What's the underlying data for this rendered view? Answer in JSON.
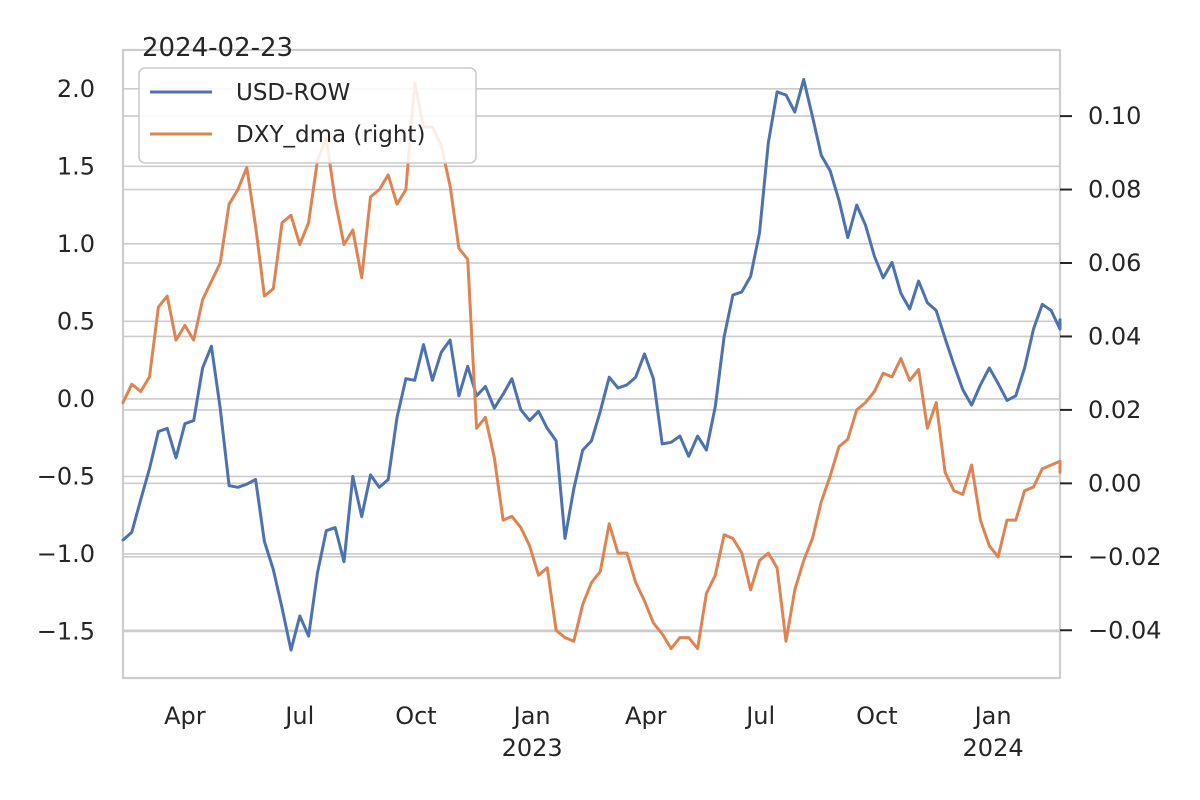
{
  "chart_data": {
    "type": "line",
    "title": "2024-02-23",
    "x_axis": {
      "type": "date",
      "range": [
        "2022-02-11",
        "2024-02-23"
      ],
      "ticks": [
        {
          "date": "2022-04-01",
          "label": "Apr"
        },
        {
          "date": "2022-07-01",
          "label": "Jul"
        },
        {
          "date": "2022-10-01",
          "label": "Oct"
        },
        {
          "date": "2023-01-01",
          "label": "Jan",
          "sublabel": "2023"
        },
        {
          "date": "2023-04-01",
          "label": "Apr"
        },
        {
          "date": "2023-07-01",
          "label": "Jul"
        },
        {
          "date": "2023-10-01",
          "label": "Oct"
        },
        {
          "date": "2024-01-01",
          "label": "Jan",
          "sublabel": "2024"
        }
      ]
    },
    "y_left": {
      "range": [
        -1.8,
        2.25
      ],
      "ticks": [
        -1.5,
        -1.0,
        -0.5,
        0.0,
        0.5,
        1.0,
        1.5,
        2.0
      ],
      "tick_labels": [
        "−1.5",
        "−1.0",
        "−0.5",
        "0.0",
        "0.5",
        "1.0",
        "1.5",
        "2.0"
      ]
    },
    "y_right": {
      "range": [
        -0.053,
        0.118
      ],
      "ticks": [
        -0.04,
        -0.02,
        0.0,
        0.02,
        0.04,
        0.06,
        0.08,
        0.1
      ],
      "tick_labels": [
        "−0.04",
        "−0.02",
        "0.00",
        "0.02",
        "0.04",
        "0.06",
        "0.08",
        "0.10"
      ]
    },
    "grid": true,
    "legend": {
      "placement": "top-left"
    },
    "series": [
      {
        "name": "USD-ROW",
        "axis": "left",
        "color": "#4c72b0",
        "points": [
          [
            "2022-02-11",
            -0.91
          ],
          [
            "2022-02-18",
            -0.86
          ],
          [
            "2022-02-25",
            -0.65
          ],
          [
            "2022-03-04",
            -0.45
          ],
          [
            "2022-03-11",
            -0.21
          ],
          [
            "2022-03-18",
            -0.19
          ],
          [
            "2022-03-25",
            -0.38
          ],
          [
            "2022-04-01",
            -0.16
          ],
          [
            "2022-04-08",
            -0.14
          ],
          [
            "2022-04-15",
            0.2
          ],
          [
            "2022-04-22",
            0.34
          ],
          [
            "2022-04-29",
            -0.06
          ],
          [
            "2022-05-06",
            -0.56
          ],
          [
            "2022-05-13",
            -0.57
          ],
          [
            "2022-05-20",
            -0.55
          ],
          [
            "2022-05-27",
            -0.52
          ],
          [
            "2022-06-03",
            -0.92
          ],
          [
            "2022-06-10",
            -1.1
          ],
          [
            "2022-06-17",
            -1.35
          ],
          [
            "2022-06-24",
            -1.62
          ],
          [
            "2022-07-01",
            -1.4
          ],
          [
            "2022-07-08",
            -1.53
          ],
          [
            "2022-07-15",
            -1.12
          ],
          [
            "2022-07-22",
            -0.85
          ],
          [
            "2022-07-29",
            -0.83
          ],
          [
            "2022-08-05",
            -1.05
          ],
          [
            "2022-08-12",
            -0.5
          ],
          [
            "2022-08-19",
            -0.76
          ],
          [
            "2022-08-26",
            -0.49
          ],
          [
            "2022-09-02",
            -0.57
          ],
          [
            "2022-09-09",
            -0.52
          ],
          [
            "2022-09-16",
            -0.12
          ],
          [
            "2022-09-23",
            0.13
          ],
          [
            "2022-09-30",
            0.12
          ],
          [
            "2022-10-07",
            0.35
          ],
          [
            "2022-10-14",
            0.12
          ],
          [
            "2022-10-21",
            0.3
          ],
          [
            "2022-10-28",
            0.38
          ],
          [
            "2022-11-04",
            0.02
          ],
          [
            "2022-11-11",
            0.21
          ],
          [
            "2022-11-18",
            0.02
          ],
          [
            "2022-11-25",
            0.08
          ],
          [
            "2022-12-02",
            -0.06
          ],
          [
            "2022-12-09",
            0.03
          ],
          [
            "2022-12-16",
            0.13
          ],
          [
            "2022-12-23",
            -0.07
          ],
          [
            "2022-12-30",
            -0.14
          ],
          [
            "2023-01-06",
            -0.08
          ],
          [
            "2023-01-13",
            -0.19
          ],
          [
            "2023-01-20",
            -0.27
          ],
          [
            "2023-01-27",
            -0.9
          ],
          [
            "2023-02-03",
            -0.58
          ],
          [
            "2023-02-10",
            -0.33
          ],
          [
            "2023-02-17",
            -0.27
          ],
          [
            "2023-02-24",
            -0.08
          ],
          [
            "2023-03-03",
            0.14
          ],
          [
            "2023-03-10",
            0.07
          ],
          [
            "2023-03-17",
            0.09
          ],
          [
            "2023-03-24",
            0.14
          ],
          [
            "2023-03-31",
            0.29
          ],
          [
            "2023-04-07",
            0.13
          ],
          [
            "2023-04-14",
            -0.29
          ],
          [
            "2023-04-21",
            -0.28
          ],
          [
            "2023-04-28",
            -0.24
          ],
          [
            "2023-05-05",
            -0.37
          ],
          [
            "2023-05-12",
            -0.24
          ],
          [
            "2023-05-19",
            -0.33
          ],
          [
            "2023-05-26",
            -0.05
          ],
          [
            "2023-06-02",
            0.4
          ],
          [
            "2023-06-09",
            0.67
          ],
          [
            "2023-06-16",
            0.69
          ],
          [
            "2023-06-23",
            0.79
          ],
          [
            "2023-06-30",
            1.07
          ],
          [
            "2023-07-07",
            1.65
          ],
          [
            "2023-07-14",
            1.98
          ],
          [
            "2023-07-21",
            1.96
          ],
          [
            "2023-07-28",
            1.85
          ],
          [
            "2023-08-04",
            2.06
          ],
          [
            "2023-08-11",
            1.82
          ],
          [
            "2023-08-18",
            1.57
          ],
          [
            "2023-08-25",
            1.47
          ],
          [
            "2023-09-01",
            1.28
          ],
          [
            "2023-09-08",
            1.04
          ],
          [
            "2023-09-15",
            1.25
          ],
          [
            "2023-09-22",
            1.12
          ],
          [
            "2023-09-29",
            0.92
          ],
          [
            "2023-10-06",
            0.78
          ],
          [
            "2023-10-13",
            0.88
          ],
          [
            "2023-10-20",
            0.68
          ],
          [
            "2023-10-27",
            0.58
          ],
          [
            "2023-11-03",
            0.76
          ],
          [
            "2023-11-10",
            0.62
          ],
          [
            "2023-11-17",
            0.57
          ],
          [
            "2023-11-24",
            0.39
          ],
          [
            "2023-12-01",
            0.22
          ],
          [
            "2023-12-08",
            0.06
          ],
          [
            "2023-12-15",
            -0.04
          ],
          [
            "2023-12-22",
            0.09
          ],
          [
            "2023-12-29",
            0.2
          ],
          [
            "2024-01-05",
            0.1
          ],
          [
            "2024-01-12",
            -0.01
          ],
          [
            "2024-01-19",
            0.02
          ],
          [
            "2024-01-26",
            0.2
          ],
          [
            "2024-02-02",
            0.45
          ],
          [
            "2024-02-09",
            0.61
          ],
          [
            "2024-02-16",
            0.57
          ],
          [
            "2024-02-23",
            0.45
          ],
          [
            "2024-02-23",
            0.51
          ]
        ]
      },
      {
        "name": "DXY_dma (right)",
        "axis": "right",
        "color": "#dd8452",
        "points": [
          [
            "2022-02-11",
            0.022
          ],
          [
            "2022-02-18",
            0.027
          ],
          [
            "2022-02-25",
            0.025
          ],
          [
            "2022-03-04",
            0.029
          ],
          [
            "2022-03-11",
            0.048
          ],
          [
            "2022-03-18",
            0.051
          ],
          [
            "2022-03-25",
            0.039
          ],
          [
            "2022-04-01",
            0.043
          ],
          [
            "2022-04-08",
            0.039
          ],
          [
            "2022-04-15",
            0.05
          ],
          [
            "2022-04-22",
            0.055
          ],
          [
            "2022-04-29",
            0.06
          ],
          [
            "2022-05-06",
            0.076
          ],
          [
            "2022-05-13",
            0.08
          ],
          [
            "2022-05-20",
            0.086
          ],
          [
            "2022-05-27",
            0.07
          ],
          [
            "2022-06-03",
            0.051
          ],
          [
            "2022-06-10",
            0.053
          ],
          [
            "2022-06-17",
            0.071
          ],
          [
            "2022-06-24",
            0.073
          ],
          [
            "2022-07-01",
            0.065
          ],
          [
            "2022-07-08",
            0.071
          ],
          [
            "2022-07-15",
            0.088
          ],
          [
            "2022-07-22",
            0.094
          ],
          [
            "2022-07-29",
            0.077
          ],
          [
            "2022-08-05",
            0.065
          ],
          [
            "2022-08-12",
            0.069
          ],
          [
            "2022-08-19",
            0.056
          ],
          [
            "2022-08-26",
            0.078
          ],
          [
            "2022-09-02",
            0.08
          ],
          [
            "2022-09-09",
            0.084
          ],
          [
            "2022-09-16",
            0.076
          ],
          [
            "2022-09-23",
            0.08
          ],
          [
            "2022-09-30",
            0.109
          ],
          [
            "2022-10-07",
            0.097
          ],
          [
            "2022-10-14",
            0.097
          ],
          [
            "2022-10-21",
            0.092
          ],
          [
            "2022-10-28",
            0.081
          ],
          [
            "2022-11-04",
            0.064
          ],
          [
            "2022-11-11",
            0.061
          ],
          [
            "2022-11-18",
            0.015
          ],
          [
            "2022-11-25",
            0.018
          ],
          [
            "2022-12-02",
            0.007
          ],
          [
            "2022-12-09",
            -0.01
          ],
          [
            "2022-12-16",
            -0.009
          ],
          [
            "2022-12-23",
            -0.012
          ],
          [
            "2022-12-30",
            -0.017
          ],
          [
            "2023-01-06",
            -0.025
          ],
          [
            "2023-01-13",
            -0.023
          ],
          [
            "2023-01-20",
            -0.04
          ],
          [
            "2023-01-27",
            -0.042
          ],
          [
            "2023-02-03",
            -0.043
          ],
          [
            "2023-02-10",
            -0.033
          ],
          [
            "2023-02-17",
            -0.027
          ],
          [
            "2023-02-24",
            -0.024
          ],
          [
            "2023-03-03",
            -0.011
          ],
          [
            "2023-03-10",
            -0.019
          ],
          [
            "2023-03-17",
            -0.019
          ],
          [
            "2023-03-24",
            -0.027
          ],
          [
            "2023-03-31",
            -0.032
          ],
          [
            "2023-04-07",
            -0.038
          ],
          [
            "2023-04-14",
            -0.041
          ],
          [
            "2023-04-21",
            -0.045
          ],
          [
            "2023-04-28",
            -0.042
          ],
          [
            "2023-05-05",
            -0.042
          ],
          [
            "2023-05-12",
            -0.045
          ],
          [
            "2023-05-19",
            -0.03
          ],
          [
            "2023-05-26",
            -0.025
          ],
          [
            "2023-06-02",
            -0.014
          ],
          [
            "2023-06-09",
            -0.015
          ],
          [
            "2023-06-16",
            -0.019
          ],
          [
            "2023-06-23",
            -0.029
          ],
          [
            "2023-06-30",
            -0.021
          ],
          [
            "2023-07-07",
            -0.019
          ],
          [
            "2023-07-14",
            -0.023
          ],
          [
            "2023-07-21",
            -0.043
          ],
          [
            "2023-07-28",
            -0.029
          ],
          [
            "2023-08-04",
            -0.021
          ],
          [
            "2023-08-11",
            -0.015
          ],
          [
            "2023-08-18",
            -0.005
          ],
          [
            "2023-08-25",
            0.002
          ],
          [
            "2023-09-01",
            0.01
          ],
          [
            "2023-09-08",
            0.012
          ],
          [
            "2023-09-15",
            0.02
          ],
          [
            "2023-09-22",
            0.022
          ],
          [
            "2023-09-29",
            0.025
          ],
          [
            "2023-10-06",
            0.03
          ],
          [
            "2023-10-13",
            0.029
          ],
          [
            "2023-10-20",
            0.034
          ],
          [
            "2023-10-27",
            0.028
          ],
          [
            "2023-11-03",
            0.031
          ],
          [
            "2023-11-10",
            0.015
          ],
          [
            "2023-11-17",
            0.022
          ],
          [
            "2023-11-24",
            0.003
          ],
          [
            "2023-12-01",
            -0.002
          ],
          [
            "2023-12-08",
            -0.003
          ],
          [
            "2023-12-15",
            0.005
          ],
          [
            "2023-12-22",
            -0.01
          ],
          [
            "2023-12-29",
            -0.017
          ],
          [
            "2024-01-05",
            -0.02
          ],
          [
            "2024-01-12",
            -0.01
          ],
          [
            "2024-01-19",
            -0.01
          ],
          [
            "2024-01-26",
            -0.002
          ],
          [
            "2024-02-02",
            -0.001
          ],
          [
            "2024-02-09",
            0.004
          ],
          [
            "2024-02-16",
            0.005
          ],
          [
            "2024-02-23",
            0.006
          ],
          [
            "2024-02-23",
            0.003
          ]
        ]
      }
    ]
  }
}
